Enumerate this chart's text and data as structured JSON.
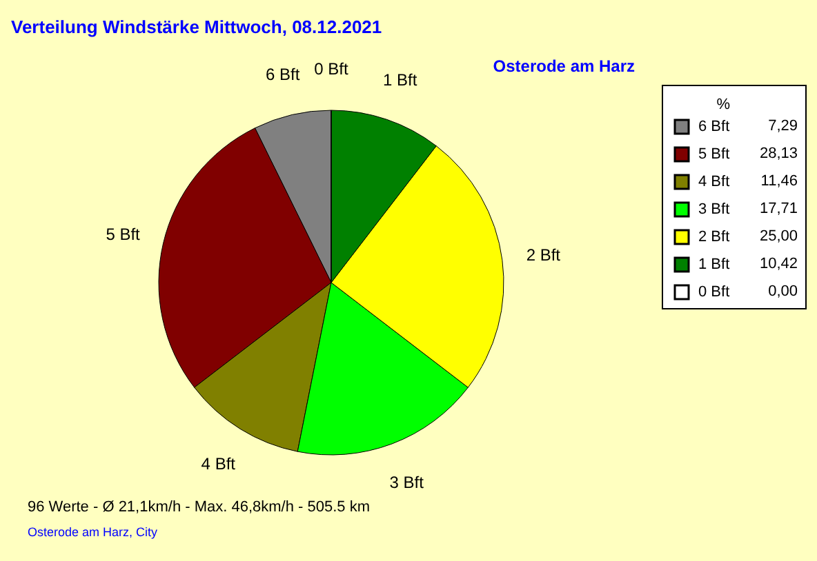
{
  "chart_data": {
    "type": "pie",
    "title": "Verteilung Windstärke  Mittwoch, 08.12.2021",
    "subtitle": "Osterode am Harz",
    "categories": [
      "6 Bft",
      "5 Bft",
      "4 Bft",
      "3 Bft",
      "2 Bft",
      "1 Bft",
      "0 Bft"
    ],
    "values": [
      7.29,
      28.13,
      11.46,
      17.71,
      25.0,
      10.42,
      0.0
    ],
    "value_labels": [
      "7,29",
      "28,13",
      "11,46",
      "17,71",
      "25,00",
      "10,42",
      "0,00"
    ],
    "colors": [
      "#808080",
      "#800000",
      "#808000",
      "#00ff00",
      "#ffff00",
      "#008000",
      "#ffffff"
    ],
    "legend_title": "%",
    "legend": "top right",
    "annotations": [
      "96 Werte   -   Ø 21,1km/h  -  Max. 46,8km/h   -   505.5 km",
      "Osterode am Harz, City"
    ]
  }
}
